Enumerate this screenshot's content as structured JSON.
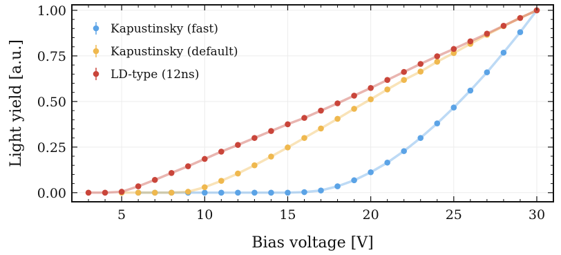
{
  "chart_data": {
    "type": "line",
    "xlabel": "Bias voltage [V]",
    "ylabel": "Light yield [a.u.]",
    "xlim": [
      2,
      31
    ],
    "ylim": [
      -0.05,
      1.03
    ],
    "xticks": [
      5,
      10,
      15,
      20,
      25,
      30
    ],
    "yticks": [
      0.0,
      0.25,
      0.5,
      0.75,
      1.0
    ],
    "xtick_labels": [
      "5",
      "10",
      "15",
      "20",
      "25",
      "30"
    ],
    "ytick_labels": [
      "0.00",
      "0.25",
      "0.50",
      "0.75",
      "1.00"
    ],
    "grid": true,
    "legend_position": "top-left",
    "x": [
      3,
      4,
      5,
      6,
      7,
      8,
      9,
      10,
      11,
      12,
      13,
      14,
      15,
      16,
      17,
      18,
      19,
      20,
      21,
      22,
      23,
      24,
      25,
      26,
      27,
      28,
      29,
      30
    ],
    "series": [
      {
        "name": "Kapustinsky (fast)",
        "color": "#5ba3e6",
        "x": [
          6,
          7,
          8,
          9,
          10,
          11,
          12,
          13,
          14,
          15,
          16,
          17,
          18,
          19,
          20,
          21,
          22,
          23,
          24,
          25,
          26,
          27,
          28,
          29,
          30
        ],
        "values": [
          0.0,
          0.0,
          0.0,
          0.0,
          0.0,
          0.0,
          0.0,
          0.0,
          0.0,
          0.0,
          0.003,
          0.012,
          0.035,
          0.068,
          0.112,
          0.165,
          0.228,
          0.3,
          0.38,
          0.467,
          0.56,
          0.66,
          0.768,
          0.88,
          1.0
        ]
      },
      {
        "name": "Kapustinsky (default)",
        "color": "#efb84e",
        "x": [
          5,
          6,
          7,
          8,
          9,
          10,
          11,
          12,
          13,
          14,
          15,
          16,
          17,
          18,
          19,
          20,
          21,
          22,
          23,
          24,
          25,
          26,
          27,
          28,
          29,
          30
        ],
        "values": [
          0.0,
          0.0,
          0.0,
          0.0,
          0.005,
          0.03,
          0.065,
          0.105,
          0.15,
          0.198,
          0.248,
          0.3,
          0.352,
          0.405,
          0.46,
          0.512,
          0.566,
          0.618,
          0.664,
          0.718,
          0.766,
          0.816,
          0.866,
          0.913,
          0.958,
          1.0
        ]
      },
      {
        "name": "LD-type (12ns)",
        "color": "#c9453a",
        "x": [
          3,
          4,
          5,
          6,
          7,
          8,
          9,
          10,
          11,
          12,
          13,
          14,
          15,
          16,
          17,
          18,
          19,
          20,
          21,
          22,
          23,
          24,
          25,
          26,
          27,
          28,
          29,
          30
        ],
        "values": [
          0.0,
          0.0,
          0.005,
          0.035,
          0.07,
          0.108,
          0.145,
          0.185,
          0.225,
          0.262,
          0.3,
          0.338,
          0.375,
          0.41,
          0.45,
          0.49,
          0.532,
          0.574,
          0.618,
          0.662,
          0.706,
          0.748,
          0.788,
          0.83,
          0.872,
          0.915,
          0.958,
          1.0
        ]
      }
    ]
  }
}
